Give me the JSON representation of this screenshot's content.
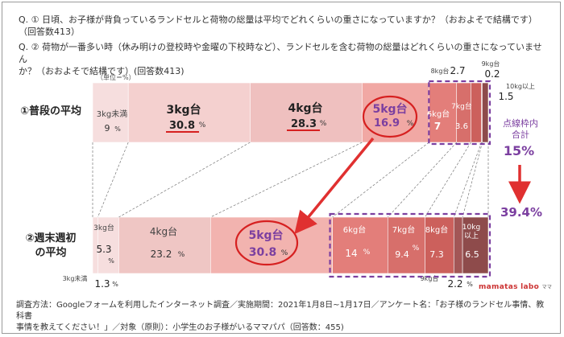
{
  "questions": {
    "q1_line1": "Q. ① 日頃、お子様が背負っているランドセルと荷物の総量は平均でどれくらいの重さになっていますか？（おおよそで結構です）",
    "q1_line2": "（回答数413）",
    "q2_line1": "Q. ② 荷物が一番多い時（休み明けの登校時や金曜の下校時など）、ランドセルを含む荷物の総量はどれくらいの重さになっていません",
    "q2_line2": "か？（おおよそで結構です）(回答数413)"
  },
  "footer": {
    "line1": "調査方法：Googleフォームを利用したインターネット調査／実施期間：2021年1月8日~1月17日／アンケート名：「お子様のランドセル事情、教科書",
    "line2": "事情を教えてください！」／対象（原則）：小学生のお子様がいるママパパ（回答数：455)"
  },
  "logo": {
    "text": "mamatas labo",
    "sub": "ママ"
  },
  "chart_data": {
    "type": "bar",
    "unit_label": "（単位＝%）",
    "categories": [
      "3kg未満",
      "3kg台",
      "4kg台",
      "5kg台",
      "6kg台",
      "7kg台",
      "8kg台",
      "9kg台",
      "10kg以上"
    ],
    "series": [
      {
        "name": "①普段の平均",
        "values": [
          9,
          30.8,
          28.3,
          16.9,
          7,
          3.6,
          2.7,
          0.2,
          1.5
        ]
      },
      {
        "name": "②週末週初の平均",
        "values": [
          1.3,
          5.3,
          23.2,
          30.8,
          14,
          9.4,
          7.3,
          2.2,
          6.5
        ]
      }
    ],
    "row_labels": [
      "①普段の平均",
      "②週末週初",
      "の平均"
    ],
    "label_texts": {
      "top": [
        "3kg未満",
        "9",
        "3kg台",
        "30.8",
        "4kg台",
        "28.3",
        "5kg台",
        "16.9",
        "6kg台",
        "7",
        "7kg台",
        "3.6",
        "8kg台",
        "2.7",
        "9kg台",
        "0.2",
        "10kg以上",
        "1.5"
      ],
      "bottom": [
        "3kg未満",
        "1.3",
        "3kg台",
        "5.3",
        "4kg台",
        "23.2",
        "5kg台",
        "30.8",
        "6kg台",
        "14",
        "7kg台",
        "9.4",
        "8kg台",
        "7.3",
        "9kg台",
        "2.2",
        "10kg",
        "以上",
        "6.5"
      ]
    },
    "percent_sign": "%",
    "callout": {
      "label1": "点線枠内",
      "label2": "合計",
      "value_top": "15%",
      "value_bottom": "39.4%"
    },
    "colors": {
      "highlight": "#7b3fa0",
      "arrow": "#e03030",
      "value_red": "#d62020"
    }
  }
}
